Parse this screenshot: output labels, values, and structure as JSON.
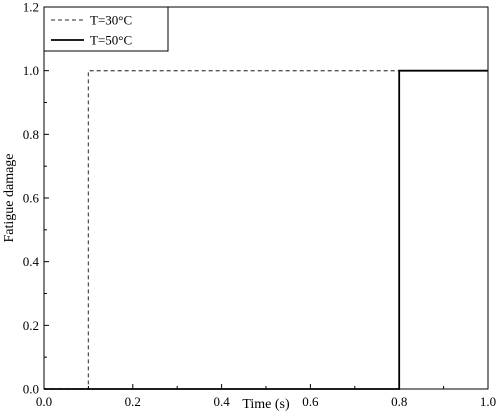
{
  "chart_data": {
    "type": "line",
    "xlabel": "Time (s)",
    "ylabel": "Fatigue damage",
    "xlim": [
      0.0,
      1.0
    ],
    "ylim": [
      0.0,
      1.2
    ],
    "x_ticks": [
      "0.0",
      "0.2",
      "0.4",
      "0.6",
      "0.8",
      "1.0"
    ],
    "y_ticks": [
      "0.0",
      "0.2",
      "0.4",
      "0.6",
      "0.8",
      "1.0",
      "1.2"
    ],
    "grid": false,
    "legend_position": "top-left",
    "series": [
      {
        "name": "T=30°C",
        "style": "dashed",
        "color": "#555555",
        "x": [
          0.0,
          0.1,
          0.1,
          1.0
        ],
        "y": [
          0.0,
          0.0,
          1.0,
          1.0
        ]
      },
      {
        "name": "T=50°C",
        "style": "solid",
        "color": "#000000",
        "x": [
          0.0,
          0.8,
          0.8,
          1.0
        ],
        "y": [
          0.0,
          0.0,
          1.0,
          1.0
        ]
      }
    ]
  }
}
